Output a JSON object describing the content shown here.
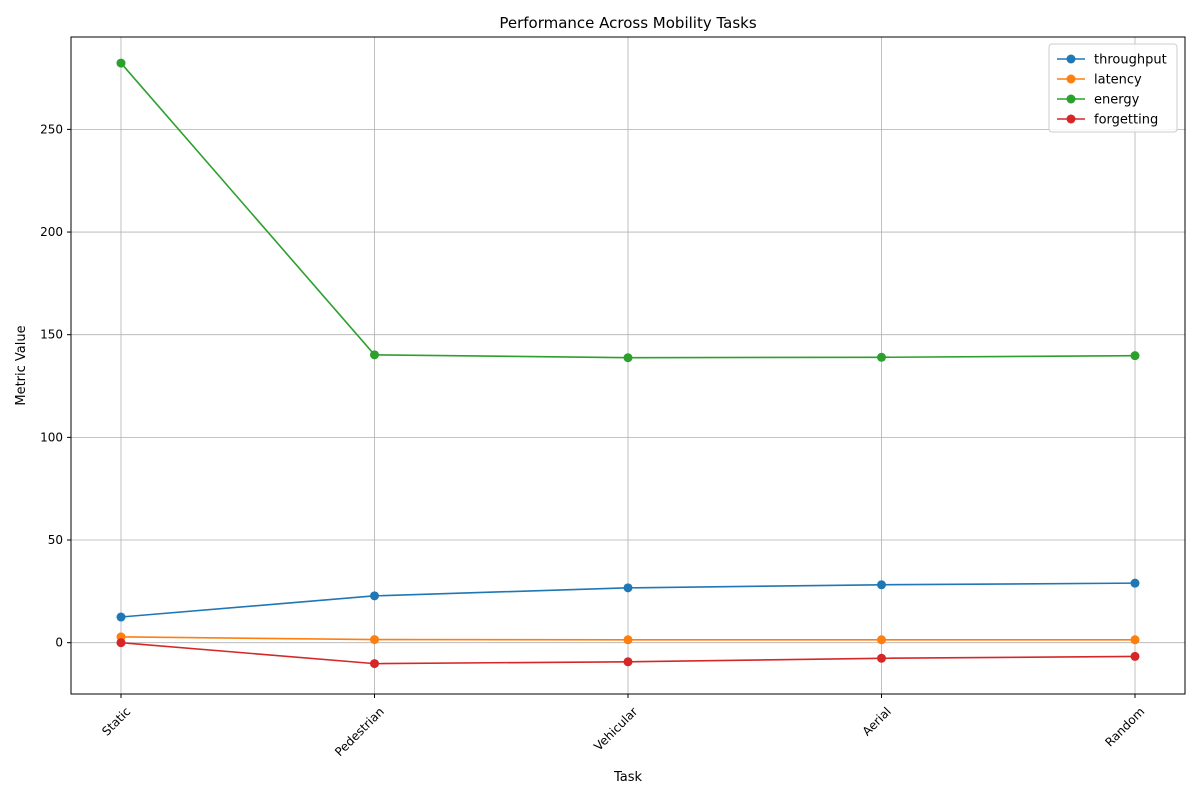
{
  "chart_data": {
    "type": "line",
    "title": "Performance Across Mobility Tasks",
    "xlabel": "Task",
    "ylabel": "Metric Value",
    "categories": [
      "Static",
      "Pedestrian",
      "Vehicular",
      "Aerial",
      "Random"
    ],
    "ylim": [
      -25,
      295
    ],
    "yticks": [
      0,
      50,
      100,
      150,
      200,
      250
    ],
    "grid": true,
    "legend_position": "top-right",
    "series": [
      {
        "name": "throughput",
        "color": "#1f77b4",
        "values": [
          12.5,
          22.8,
          26.7,
          28.2,
          29.0
        ]
      },
      {
        "name": "latency",
        "color": "#ff7f0e",
        "values": [
          2.8,
          1.5,
          1.4,
          1.4,
          1.4
        ]
      },
      {
        "name": "energy",
        "color": "#2ca02c",
        "values": [
          282.3,
          140.2,
          138.8,
          139.0,
          139.8
        ]
      },
      {
        "name": "forgetting",
        "color": "#d62728",
        "values": [
          0.0,
          -10.2,
          -9.3,
          -7.6,
          -6.7
        ]
      }
    ]
  }
}
